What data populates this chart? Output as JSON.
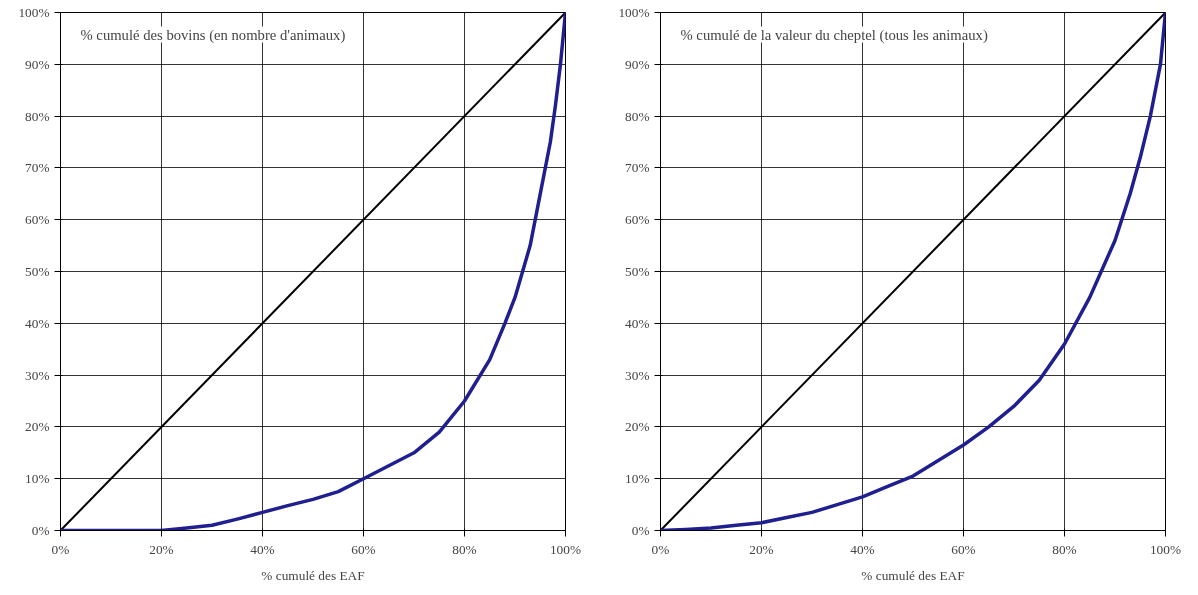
{
  "chart_data": [
    {
      "type": "line",
      "ylabel": "% cumulé des bovins (en nombre d'animaux)",
      "xlabel": "% cumulé des EAF",
      "xlim": [
        0,
        100
      ],
      "ylim": [
        0,
        100
      ],
      "xticks": [
        {
          "value": 0,
          "label": "0%"
        },
        {
          "value": 20,
          "label": "20%"
        },
        {
          "value": 40,
          "label": "40%"
        },
        {
          "value": 60,
          "label": "60%"
        },
        {
          "value": 80,
          "label": "80%"
        },
        {
          "value": 100,
          "label": "100%"
        }
      ],
      "yticks": [
        {
          "value": 0,
          "label": "0%"
        },
        {
          "value": 10,
          "label": "10%"
        },
        {
          "value": 20,
          "label": "20%"
        },
        {
          "value": 30,
          "label": "30%"
        },
        {
          "value": 40,
          "label": "40%"
        },
        {
          "value": 50,
          "label": "50%"
        },
        {
          "value": 60,
          "label": "60%"
        },
        {
          "value": 70,
          "label": "70%"
        },
        {
          "value": 80,
          "label": "80%"
        },
        {
          "value": 90,
          "label": "90%"
        },
        {
          "value": 100,
          "label": "100%"
        }
      ],
      "grid": true,
      "marker": "none",
      "line_style": "solid",
      "series": [
        {
          "color": "#000000",
          "x": [
            0,
            100
          ],
          "values": [
            0,
            100
          ]
        },
        {
          "color": "#1f1f8f",
          "x": [
            0,
            10,
            20,
            25,
            30,
            35,
            40,
            45,
            50,
            55,
            60,
            65,
            70,
            75,
            80,
            85,
            88,
            90,
            93,
            95,
            97,
            98,
            99,
            100
          ],
          "values": [
            0,
            0,
            0,
            0.5,
            1,
            2.2,
            3.5,
            4.8,
            6,
            7.5,
            10,
            12.5,
            15,
            19,
            25,
            33,
            40,
            45,
            55,
            65,
            75,
            82,
            90,
            100
          ]
        }
      ]
    },
    {
      "type": "line",
      "ylabel": "% cumulé de la valeur du cheptel (tous les animaux)",
      "xlabel": "% cumulé des EAF",
      "xlim": [
        0,
        100
      ],
      "ylim": [
        0,
        100
      ],
      "xticks": [
        {
          "value": 0,
          "label": "0%"
        },
        {
          "value": 20,
          "label": "20%"
        },
        {
          "value": 40,
          "label": "40%"
        },
        {
          "value": 60,
          "label": "60%"
        },
        {
          "value": 80,
          "label": "80%"
        },
        {
          "value": 100,
          "label": "100%"
        }
      ],
      "yticks": [
        {
          "value": 0,
          "label": "0%"
        },
        {
          "value": 10,
          "label": "10%"
        },
        {
          "value": 20,
          "label": "20%"
        },
        {
          "value": 30,
          "label": "30%"
        },
        {
          "value": 40,
          "label": "40%"
        },
        {
          "value": 50,
          "label": "50%"
        },
        {
          "value": 60,
          "label": "60%"
        },
        {
          "value": 70,
          "label": "70%"
        },
        {
          "value": 80,
          "label": "80%"
        },
        {
          "value": 90,
          "label": "90%"
        },
        {
          "value": 100,
          "label": "100%"
        }
      ],
      "grid": true,
      "marker": "none",
      "line_style": "solid",
      "series": [
        {
          "color": "#000000",
          "x": [
            0,
            100
          ],
          "values": [
            0,
            100
          ]
        },
        {
          "color": "#1f1f8f",
          "x": [
            0,
            5,
            10,
            15,
            20,
            25,
            30,
            35,
            40,
            45,
            50,
            55,
            60,
            65,
            70,
            75,
            80,
            85,
            90,
            93,
            95,
            97,
            99,
            100
          ],
          "values": [
            0,
            0.2,
            0.5,
            1,
            1.5,
            2.5,
            3.5,
            5,
            6.5,
            8.5,
            10.5,
            13.5,
            16.5,
            20,
            24,
            29,
            36,
            45,
            56,
            65,
            72,
            80,
            90,
            100
          ]
        }
      ]
    }
  ]
}
